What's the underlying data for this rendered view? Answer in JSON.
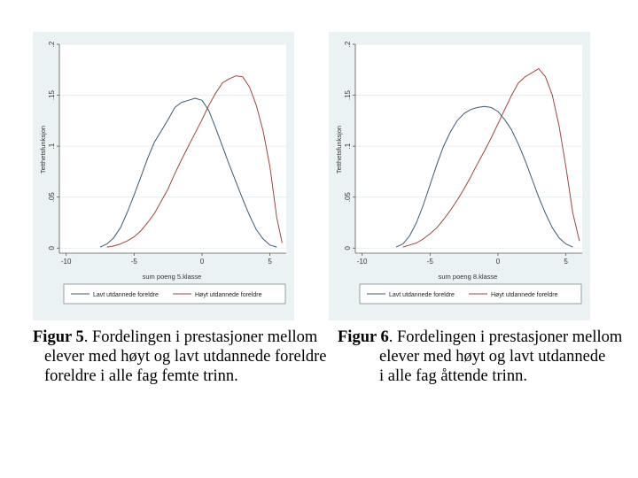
{
  "figures": [
    {
      "caption": {
        "label": "Figur 5",
        "line1": ". Fordelingen i prestasjoner mellom",
        "line2": "elever med høyt og lavt utdannede foreldre",
        "line3": "foreldre i alle fag femte trinn."
      }
    },
    {
      "caption": {
        "label": "Figur 6",
        "line1": ". Fordelingen i prestasjoner mellom",
        "line2": "elever med høyt og lavt utdannede",
        "line3": "i alle fag åttende trinn."
      }
    }
  ],
  "colors": {
    "panel_bg": "#eaf2f3",
    "series_low": "#3b5a75",
    "series_high": "#a0453f",
    "grid": "#ffffff"
  },
  "chart_data": [
    {
      "type": "line",
      "xlabel": "sum poeng 5.klasse",
      "ylabel": "Tetthetsfunksjon",
      "xlim": [
        -10.5,
        6.2
      ],
      "ylim": [
        -0.005,
        0.2
      ],
      "xticks": [
        -10,
        -5,
        0,
        5
      ],
      "xtick_labels": [
        "-10",
        "-5",
        "0",
        "5"
      ],
      "yticks": [
        0,
        0.05,
        0.1,
        0.15,
        0.2
      ],
      "ytick_labels": [
        "0",
        ".05",
        ".1",
        ".15",
        ".2"
      ],
      "grid": true,
      "legend": "bottom",
      "series": [
        {
          "name": "Lavt utdannede foreldre",
          "color": "#3b5a75",
          "x": [
            -7.5,
            -7,
            -6.5,
            -6,
            -5.5,
            -5,
            -4.5,
            -4,
            -3.5,
            -3,
            -2.5,
            -2,
            -1.5,
            -1,
            -0.5,
            0,
            0.5,
            1,
            1.5,
            2,
            2.5,
            3,
            3.5,
            4,
            4.5,
            5,
            5.5
          ],
          "y": [
            0.001,
            0.004,
            0.01,
            0.02,
            0.035,
            0.052,
            0.07,
            0.088,
            0.104,
            0.115,
            0.126,
            0.138,
            0.143,
            0.145,
            0.147,
            0.145,
            0.135,
            0.118,
            0.1,
            0.082,
            0.065,
            0.048,
            0.032,
            0.018,
            0.009,
            0.003,
            0.001
          ]
        },
        {
          "name": "Høyt utdannede foreldre",
          "color": "#a0453f",
          "x": [
            -7,
            -6.5,
            -6,
            -5.5,
            -5,
            -4.5,
            -4,
            -3.5,
            -3,
            -2.5,
            -2,
            -1.5,
            -1,
            -0.5,
            0,
            0.5,
            1,
            1.5,
            2,
            2.5,
            3,
            3.5,
            4,
            4.5,
            5,
            5.5,
            5.9
          ],
          "y": [
            0.001,
            0.002,
            0.004,
            0.007,
            0.011,
            0.017,
            0.025,
            0.034,
            0.046,
            0.058,
            0.073,
            0.087,
            0.1,
            0.113,
            0.126,
            0.14,
            0.152,
            0.162,
            0.166,
            0.169,
            0.168,
            0.158,
            0.14,
            0.115,
            0.08,
            0.03,
            0.005
          ]
        }
      ]
    },
    {
      "type": "line",
      "xlabel": "sum poeng 8.klasse",
      "ylabel": "Tetthetsfunksjon",
      "xlim": [
        -10.5,
        6.2
      ],
      "ylim": [
        -0.005,
        0.2
      ],
      "xticks": [
        -10,
        -5,
        0,
        5
      ],
      "xtick_labels": [
        "-10",
        "-5",
        "0",
        "5"
      ],
      "yticks": [
        0,
        0.05,
        0.1,
        0.15,
        0.2
      ],
      "ytick_labels": [
        "0",
        ".05",
        ".1",
        ".15",
        ".2"
      ],
      "grid": true,
      "legend": "bottom",
      "series": [
        {
          "name": "Lavt utdannede foreldre",
          "color": "#3b5a75",
          "x": [
            -7.5,
            -7,
            -6.5,
            -6,
            -5.5,
            -5,
            -4.5,
            -4,
            -3.5,
            -3,
            -2.5,
            -2,
            -1.5,
            -1,
            -0.5,
            0,
            0.5,
            1,
            1.5,
            2,
            2.5,
            3,
            3.5,
            4,
            4.5,
            5,
            5.5
          ],
          "y": [
            0.001,
            0.004,
            0.012,
            0.025,
            0.042,
            0.062,
            0.082,
            0.1,
            0.114,
            0.125,
            0.132,
            0.136,
            0.138,
            0.139,
            0.138,
            0.134,
            0.126,
            0.116,
            0.102,
            0.086,
            0.068,
            0.05,
            0.034,
            0.02,
            0.01,
            0.004,
            0.001
          ]
        },
        {
          "name": "Høyt utdannede foreldre",
          "color": "#a0453f",
          "x": [
            -7,
            -6.5,
            -6,
            -5.5,
            -5,
            -4.5,
            -4,
            -3.5,
            -3,
            -2.5,
            -2,
            -1.5,
            -1,
            -0.5,
            0,
            0.5,
            1,
            1.5,
            2,
            2.5,
            3,
            3.5,
            4,
            4.5,
            5,
            5.5,
            6
          ],
          "y": [
            0.001,
            0.003,
            0.005,
            0.009,
            0.014,
            0.02,
            0.028,
            0.037,
            0.047,
            0.058,
            0.07,
            0.083,
            0.095,
            0.108,
            0.122,
            0.136,
            0.15,
            0.162,
            0.168,
            0.172,
            0.176,
            0.168,
            0.15,
            0.12,
            0.08,
            0.035,
            0.007
          ]
        }
      ]
    }
  ]
}
